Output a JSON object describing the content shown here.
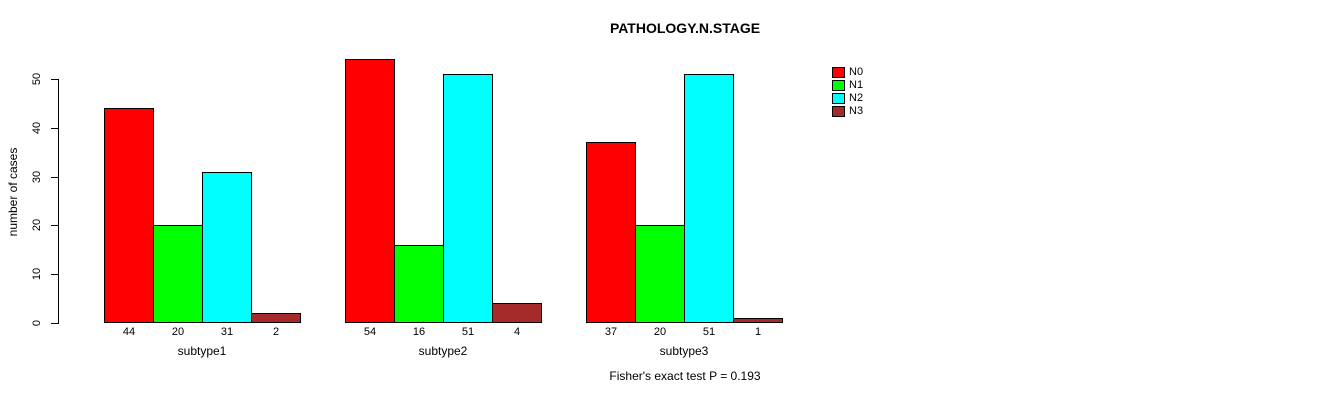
{
  "chart_data": {
    "type": "bar",
    "title": "PATHOLOGY.N.STAGE",
    "xlabel": "",
    "ylabel": "number of cases",
    "ylim": [
      0,
      50
    ],
    "yticks": [
      0,
      10,
      20,
      30,
      40,
      50
    ],
    "grid": false,
    "legend_position": "right",
    "bar_value_labels_shown": true,
    "categories": [
      "subtype1",
      "subtype2",
      "subtype3"
    ],
    "series": [
      {
        "name": "N0",
        "color": "#FF0000",
        "values": [
          44,
          54,
          37
        ]
      },
      {
        "name": "N1",
        "color": "#00FF00",
        "values": [
          20,
          16,
          20
        ]
      },
      {
        "name": "N2",
        "color": "#00FFFF",
        "values": [
          31,
          51,
          51
        ]
      },
      {
        "name": "N3",
        "color": "#A52A2A",
        "values": [
          2,
          4,
          1
        ]
      }
    ],
    "annotation": "Fisher's exact test P = 0.193"
  }
}
